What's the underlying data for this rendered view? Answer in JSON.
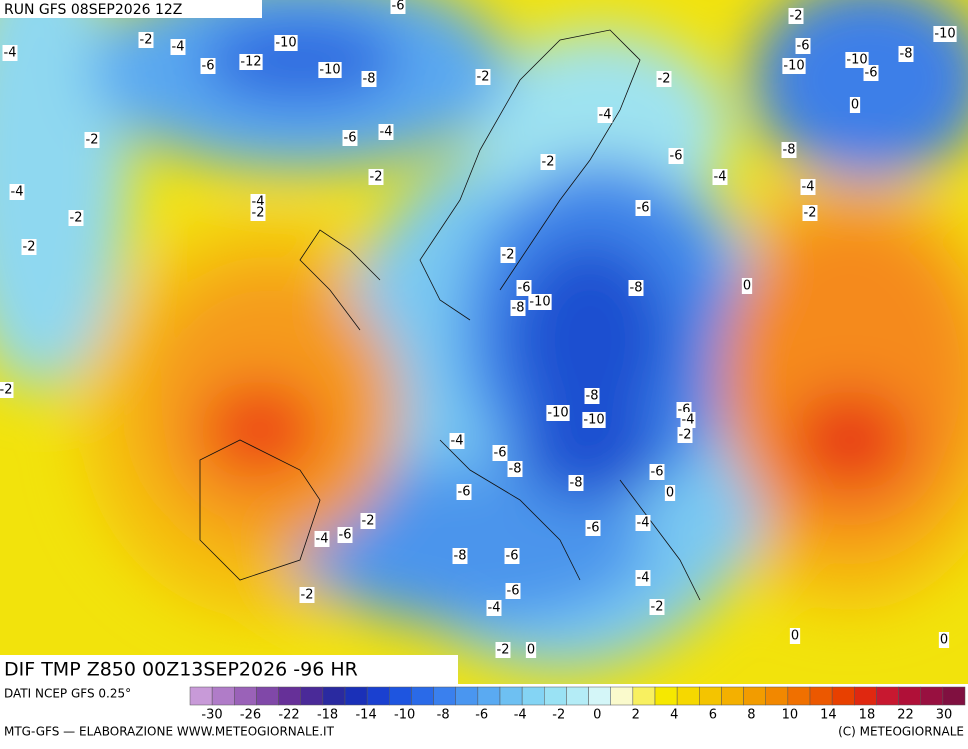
{
  "header": {
    "run": "RUN GFS 08SEP2026 12Z"
  },
  "map": {
    "title": "DIF TMP Z850 00Z13SEP2026 -96 HR",
    "contour_labels": [
      -6,
      -2,
      -2,
      -4,
      -10,
      -6,
      -10,
      -4,
      -6,
      -12,
      -10,
      -8,
      -2,
      -2,
      -10,
      -10,
      -6,
      -8,
      0,
      -4,
      -2,
      -6,
      -4,
      -8,
      -6,
      -2,
      -2,
      -4,
      -4,
      -4,
      -4,
      -2,
      -6,
      -2,
      -2,
      -2,
      -2,
      0,
      -6,
      -8,
      -10,
      -8,
      -2,
      -8,
      -10,
      -10,
      -6,
      -4,
      -2,
      -4,
      -6,
      -8,
      -6,
      -8,
      -6,
      0,
      -2,
      -6,
      -4,
      -4,
      -6,
      -8,
      -6,
      -4,
      -6,
      -2,
      -4,
      -2,
      0,
      0,
      -2,
      0
    ]
  },
  "legend": {
    "source": "DATI NCEP GFS 0.25°",
    "colors": [
      "#c89ad8",
      "#b07cc8",
      "#9a62b8",
      "#8048a8",
      "#663098",
      "#4a2a98",
      "#2a2aa0",
      "#1a30b8",
      "#1a40d0",
      "#1e55e0",
      "#2a6ae8",
      "#3a80ee",
      "#4a96f0",
      "#5aaaf2",
      "#6ec0f2",
      "#84d4f4",
      "#9ae2f4",
      "#b4ecf6",
      "#d4f6f8",
      "#fafacc",
      "#f8f060",
      "#f6e800",
      "#f6d800",
      "#f4c400",
      "#f4b000",
      "#f29c00",
      "#f28800",
      "#f07000",
      "#ec5800",
      "#e84000",
      "#e02810",
      "#c81830",
      "#b01038",
      "#981040",
      "#801040"
    ],
    "ticks": [
      -30,
      -26,
      -22,
      -18,
      -14,
      -10,
      -8,
      -6,
      -4,
      -2,
      0,
      2,
      4,
      6,
      8,
      10,
      14,
      18,
      22,
      30
    ]
  },
  "footer": {
    "left": "MTG-GFS — ELABORAZIONE WWW.METEOGIORNALE.IT",
    "right": "(C) METEOGIORNALE"
  }
}
